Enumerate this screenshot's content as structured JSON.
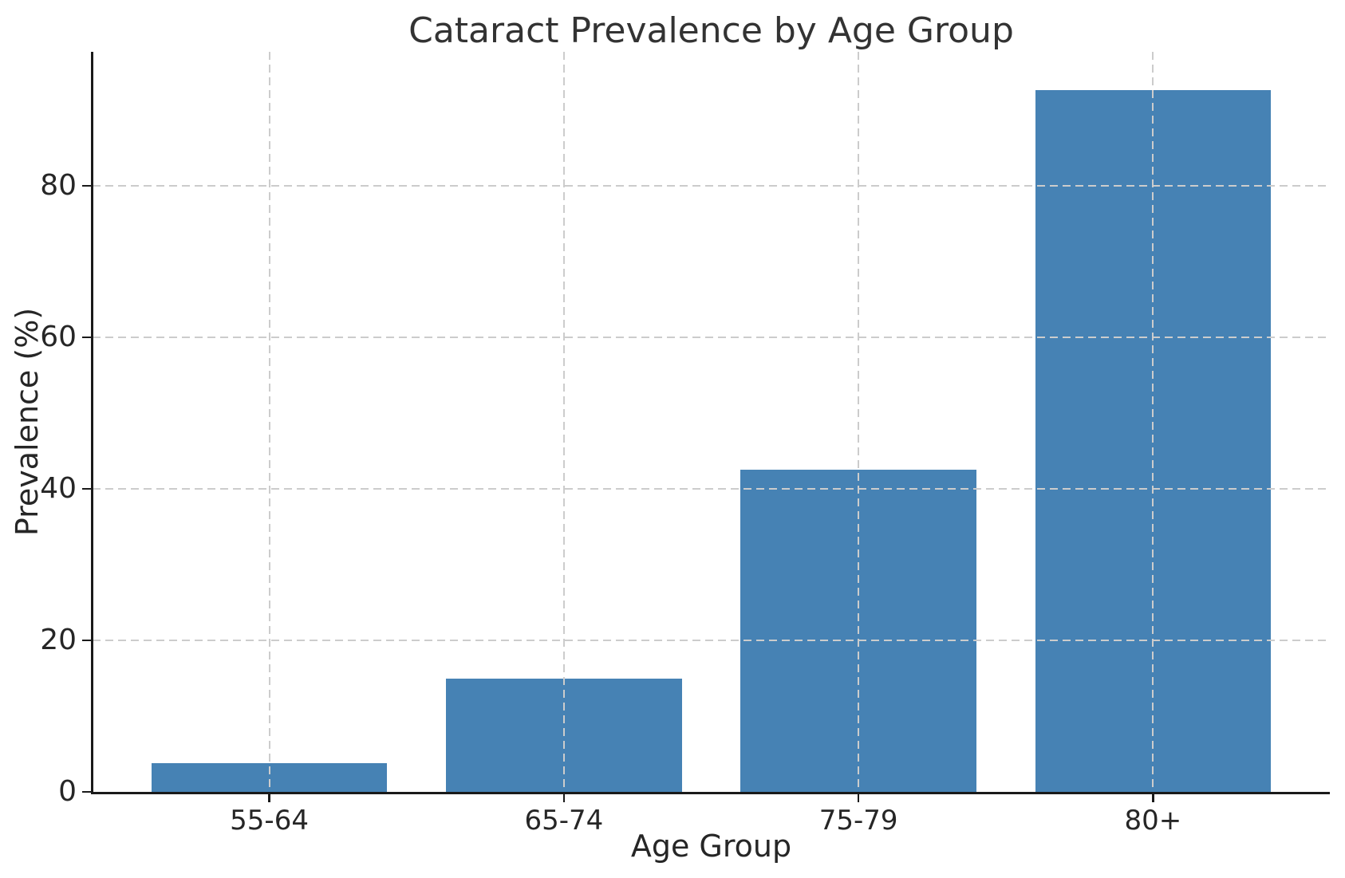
{
  "chart_data": {
    "type": "bar",
    "title": "Cataract Prevalence by Age Group",
    "xlabel": "Age Group",
    "ylabel": "Prevalence (%)",
    "categories": [
      "55-64",
      "65-74",
      "75-79",
      "80+"
    ],
    "values": [
      3.8,
      15.0,
      42.5,
      92.6
    ],
    "yticks": [
      0,
      20,
      40,
      60,
      80
    ],
    "ylim": [
      0,
      97.7
    ],
    "grid": "dashed, drawn over bars",
    "legend_position": "none",
    "colors": {
      "bar": "#4682B4",
      "grid": "#cccccc",
      "axis": "#1a1a1a",
      "text": "#262626",
      "title": "#333333",
      "background": "#ffffff"
    }
  }
}
